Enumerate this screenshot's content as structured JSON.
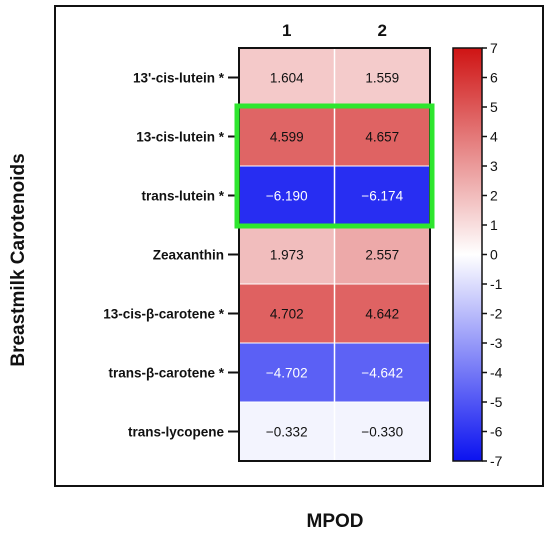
{
  "chart_data": {
    "type": "heatmap",
    "columns": [
      "1",
      "2"
    ],
    "rows": [
      "13'-cis-lutein *",
      "13-cis-lutein *",
      "trans-lutein *",
      "Zeaxanthin",
      "13-cis-β-carotene *",
      "trans-β-carotene *",
      "trans-lycopene"
    ],
    "values": [
      [
        1.604,
        1.559
      ],
      [
        4.599,
        4.657
      ],
      [
        -6.19,
        -6.174
      ],
      [
        1.973,
        2.557
      ],
      [
        4.702,
        4.642
      ],
      [
        -4.702,
        -4.642
      ],
      [
        -0.332,
        -0.33
      ]
    ],
    "value_labels": [
      [
        "1.604",
        "1.559"
      ],
      [
        "4.599",
        "4.657"
      ],
      [
        "−6.190",
        "−6.174"
      ],
      [
        "1.973",
        "2.557"
      ],
      [
        "4.702",
        "4.642"
      ],
      [
        "−4.702",
        "−4.642"
      ],
      [
        "−0.332",
        "−0.330"
      ]
    ],
    "xlabel": "MPOD",
    "ylabel": "Breastmilk Carotenoids",
    "colorbar": {
      "range": [
        -7,
        7
      ],
      "ticks": [
        "7",
        "6",
        "5",
        "4",
        "3",
        "2",
        "1",
        "0",
        "-1",
        "-2",
        "-3",
        "-4",
        "-5",
        "-6",
        "-7"
      ],
      "colors": {
        "negative": "#0b12f0",
        "zero": "#ffffff",
        "positive": "#cf1414"
      }
    },
    "highlight": {
      "rows": [
        "13-cis-lutein *",
        "trans-lutein *"
      ],
      "color": "#2ee62e"
    }
  }
}
